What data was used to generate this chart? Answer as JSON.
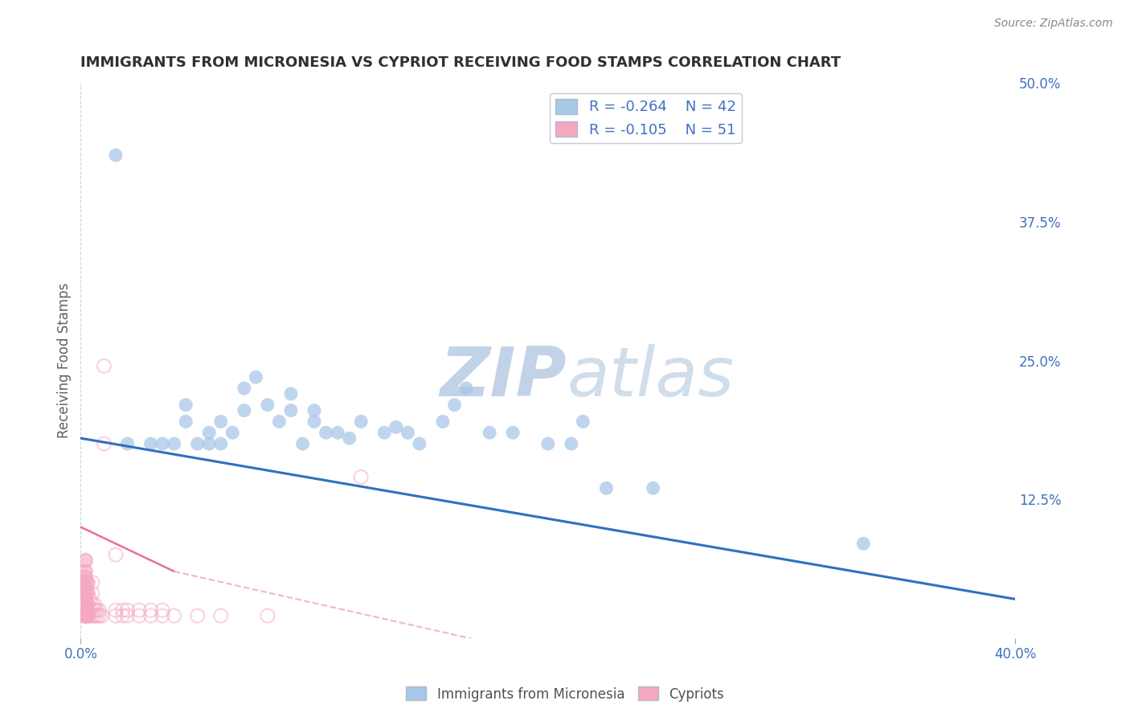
{
  "title": "IMMIGRANTS FROM MICRONESIA VS CYPRIOT RECEIVING FOOD STAMPS CORRELATION CHART",
  "source_text": "Source: ZipAtlas.com",
  "ylabel": "Receiving Food Stamps",
  "xlim": [
    0.0,
    0.4
  ],
  "ylim": [
    0.0,
    0.5
  ],
  "watermark_zip": "ZIP",
  "watermark_atlas": "atlas",
  "legend_blue_r": "R = -0.264",
  "legend_blue_n": "N = 42",
  "legend_pink_r": "R = -0.105",
  "legend_pink_n": "N = 51",
  "blue_scatter_x": [
    0.015,
    0.02,
    0.03,
    0.035,
    0.04,
    0.045,
    0.045,
    0.05,
    0.055,
    0.055,
    0.06,
    0.06,
    0.065,
    0.07,
    0.07,
    0.075,
    0.08,
    0.085,
    0.09,
    0.09,
    0.095,
    0.1,
    0.1,
    0.105,
    0.11,
    0.115,
    0.12,
    0.13,
    0.135,
    0.14,
    0.145,
    0.155,
    0.16,
    0.165,
    0.175,
    0.185,
    0.2,
    0.21,
    0.215,
    0.225,
    0.245,
    0.335
  ],
  "blue_scatter_y": [
    0.435,
    0.175,
    0.175,
    0.175,
    0.175,
    0.195,
    0.21,
    0.175,
    0.175,
    0.185,
    0.175,
    0.195,
    0.185,
    0.205,
    0.225,
    0.235,
    0.21,
    0.195,
    0.205,
    0.22,
    0.175,
    0.195,
    0.205,
    0.185,
    0.185,
    0.18,
    0.195,
    0.185,
    0.19,
    0.185,
    0.175,
    0.195,
    0.21,
    0.225,
    0.185,
    0.185,
    0.175,
    0.175,
    0.195,
    0.135,
    0.135,
    0.085
  ],
  "pink_scatter_x": [
    0.002,
    0.002,
    0.002,
    0.002,
    0.002,
    0.002,
    0.002,
    0.002,
    0.002,
    0.002,
    0.003,
    0.003,
    0.003,
    0.003,
    0.003,
    0.004,
    0.004,
    0.004,
    0.005,
    0.005,
    0.005,
    0.005,
    0.005,
    0.006,
    0.006,
    0.006,
    0.007,
    0.007,
    0.008,
    0.008,
    0.009,
    0.01,
    0.01,
    0.015,
    0.015,
    0.015,
    0.018,
    0.018,
    0.02,
    0.02,
    0.025,
    0.025,
    0.03,
    0.03,
    0.035,
    0.035,
    0.04,
    0.05,
    0.06,
    0.08,
    0.12
  ],
  "pink_scatter_y": [
    0.02,
    0.02,
    0.03,
    0.035,
    0.04,
    0.045,
    0.05,
    0.055,
    0.06,
    0.07,
    0.02,
    0.025,
    0.03,
    0.04,
    0.05,
    0.02,
    0.025,
    0.035,
    0.02,
    0.025,
    0.03,
    0.04,
    0.05,
    0.02,
    0.025,
    0.03,
    0.02,
    0.025,
    0.02,
    0.025,
    0.02,
    0.175,
    0.245,
    0.02,
    0.025,
    0.075,
    0.02,
    0.025,
    0.02,
    0.025,
    0.02,
    0.025,
    0.02,
    0.025,
    0.02,
    0.025,
    0.02,
    0.02,
    0.02,
    0.02,
    0.145
  ],
  "blue_color": "#a8c8e8",
  "pink_color": "#f4a8c0",
  "blue_line_color": "#3070c0",
  "pink_line_color": "#e87090",
  "pink_line_dash_color": "#f0b8c8",
  "background_color": "#ffffff",
  "grid_color": "#c8d4e8",
  "title_color": "#303030",
  "axis_label_color": "#4070c0",
  "watermark_color": "#c8ddf0",
  "ylabel_color": "#606060"
}
